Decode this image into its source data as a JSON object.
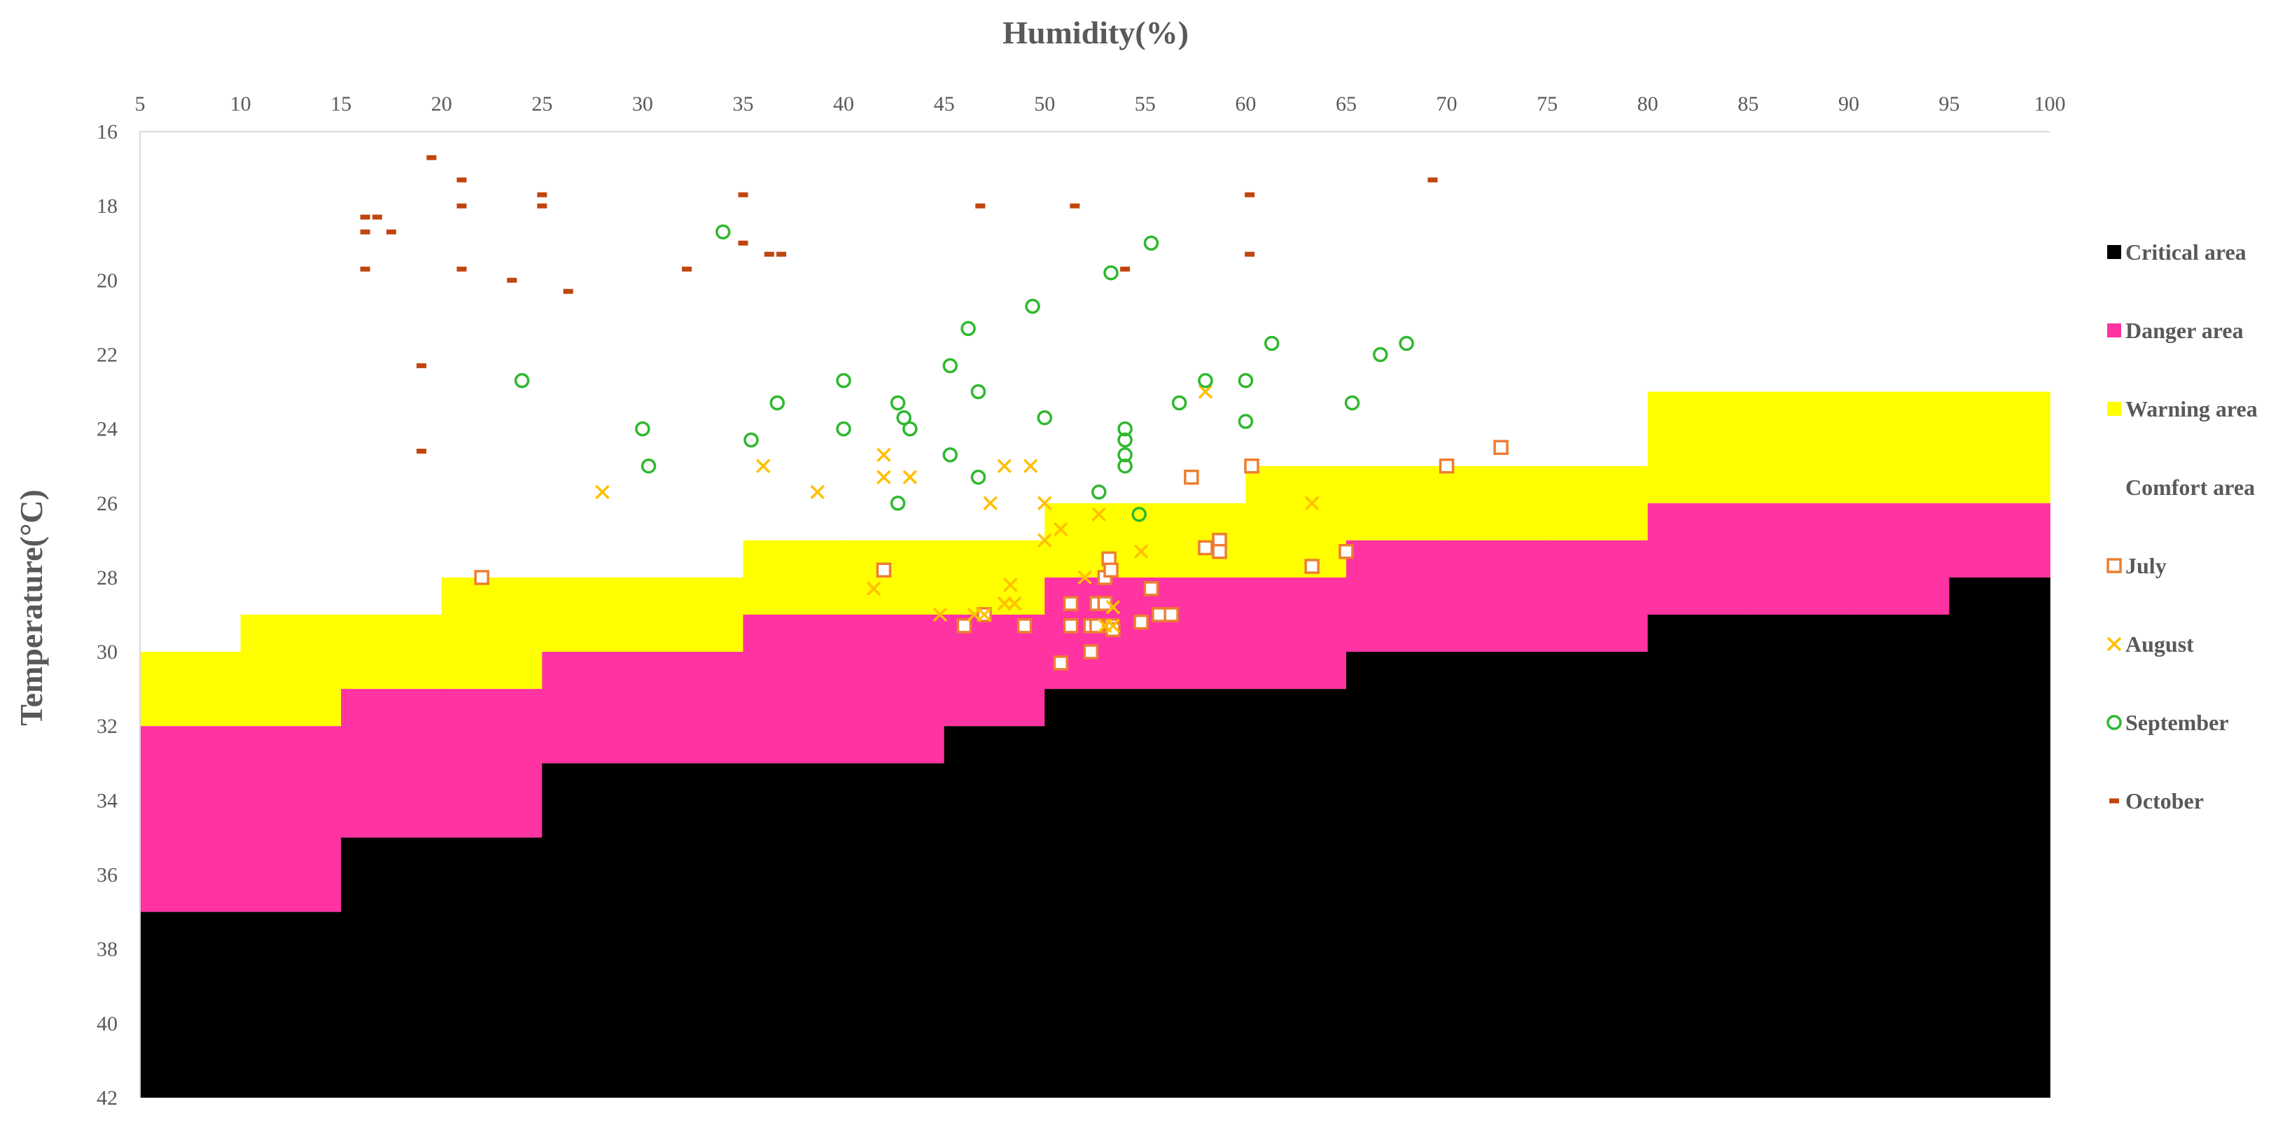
{
  "chart_data": {
    "type": "scatter",
    "xlabel": "Humidity(%)",
    "ylabel": "Temperature(°C)",
    "xlim": [
      5,
      100
    ],
    "ylim": [
      16,
      42
    ],
    "y_axis_reversed": true,
    "x_axis_position": "top",
    "grid": false,
    "legend_position": "right",
    "x_ticks": [
      5,
      10,
      15,
      20,
      25,
      30,
      35,
      40,
      45,
      50,
      55,
      60,
      65,
      70,
      75,
      80,
      85,
      90,
      95,
      100
    ],
    "y_ticks": [
      16,
      18,
      20,
      22,
      24,
      26,
      28,
      30,
      32,
      34,
      36,
      38,
      40,
      42
    ],
    "zones": {
      "x_edges": [
        5,
        10,
        15,
        20,
        25,
        30,
        35,
        40,
        45,
        50,
        55,
        60,
        65,
        70,
        75,
        80,
        85,
        90,
        95,
        100
      ],
      "warning_start": [
        30,
        29,
        29,
        28,
        28,
        28,
        27,
        27,
        27,
        26,
        26,
        25,
        25,
        25,
        25,
        23,
        23,
        23,
        23
      ],
      "danger_start": [
        32,
        32,
        31,
        31,
        30,
        30,
        29,
        29,
        29,
        28,
        28,
        28,
        27,
        27,
        27,
        26,
        26,
        26,
        26
      ],
      "critical_start": [
        37,
        37,
        35,
        35,
        33,
        33,
        33,
        33,
        32,
        31,
        31,
        31,
        30,
        30,
        30,
        29,
        29,
        29,
        28
      ]
    },
    "series": [
      {
        "name": "Critical area",
        "kind": "zone",
        "color": "#000000"
      },
      {
        "name": "Danger area",
        "kind": "zone",
        "color": "#ff33a1"
      },
      {
        "name": "Warning area",
        "kind": "zone",
        "color": "#ffff00"
      },
      {
        "name": "Comfort area",
        "kind": "zone",
        "color": "#ffffff"
      },
      {
        "name": "July",
        "kind": "points",
        "marker": "square",
        "color": "#ed7d31",
        "x": [
          22,
          42,
          46,
          47,
          49,
          50.8,
          51.3,
          51.3,
          52.3,
          52.3,
          52.6,
          52.6,
          53,
          53,
          53.2,
          53.3,
          53.3,
          53.4,
          54.8,
          55.3,
          55.7,
          56.3,
          57.3,
          58,
          58.7,
          58.7,
          60.3,
          63.3,
          65,
          70,
          72.7
        ],
        "y": [
          28,
          27.8,
          29.3,
          29,
          29.3,
          30.3,
          28.7,
          29.3,
          29.3,
          30,
          28.7,
          29.3,
          28,
          28.7,
          27.5,
          27.8,
          29.3,
          29.4,
          29.2,
          28.3,
          29,
          29,
          25.3,
          27.2,
          27,
          27.3,
          25,
          27.7,
          27.3,
          25,
          24.5
        ]
      },
      {
        "name": "August",
        "kind": "points",
        "marker": "x",
        "color": "#ffc000",
        "x": [
          28,
          36,
          38.7,
          41.5,
          42,
          42,
          43.3,
          44.8,
          46.5,
          47,
          47.3,
          48,
          48,
          48.3,
          48.5,
          49.3,
          50,
          50,
          50.8,
          52,
          52.7,
          53,
          53.4,
          53.4,
          54.8,
          58,
          63.3
        ],
        "y": [
          25.7,
          25,
          25.7,
          28.3,
          24.7,
          25.3,
          25.3,
          29,
          29,
          29,
          26,
          25,
          28.7,
          28.2,
          28.7,
          25,
          26,
          27,
          26.7,
          28,
          26.3,
          29.3,
          29.3,
          28.8,
          27.3,
          23,
          26
        ]
      },
      {
        "name": "September",
        "kind": "points",
        "marker": "circle",
        "color": "#2eb82e",
        "x": [
          24,
          30,
          30.3,
          34,
          35.4,
          36.7,
          40,
          40,
          42.7,
          42.7,
          43,
          43.3,
          45.3,
          45.3,
          46.2,
          46.7,
          46.7,
          49.4,
          50,
          52.7,
          53.3,
          54,
          54,
          54,
          54,
          54.7,
          55.3,
          56.7,
          58,
          60,
          60,
          61.3,
          65.3,
          66.7,
          68
        ],
        "y": [
          22.7,
          24,
          25,
          18.7,
          24.3,
          23.3,
          22.7,
          24,
          23.3,
          26,
          23.7,
          24,
          22.3,
          24.7,
          21.3,
          23,
          25.3,
          20.7,
          23.7,
          25.7,
          19.8,
          24,
          24.3,
          24.7,
          25,
          26.3,
          19,
          23.3,
          22.7,
          22.7,
          23.8,
          21.7,
          23.3,
          22,
          21.7
        ]
      },
      {
        "name": "October",
        "kind": "points",
        "marker": "dash",
        "color": "#c0450e",
        "x": [
          16.2,
          16.2,
          16.2,
          16.8,
          17.5,
          19,
          19,
          19.5,
          21,
          21,
          21,
          23.5,
          25,
          25,
          26.3,
          32.2,
          35,
          35,
          36.3,
          36.9,
          46.8,
          51.5,
          54,
          60.2,
          60.2,
          69.3
        ],
        "y": [
          18.3,
          18.7,
          19.7,
          18.3,
          18.7,
          22.3,
          24.6,
          16.7,
          17.3,
          18,
          19.7,
          20,
          17.7,
          18,
          20.3,
          19.7,
          17.7,
          19,
          19.3,
          19.3,
          18,
          18,
          19.7,
          17.7,
          19.3,
          17.3
        ]
      }
    ]
  }
}
